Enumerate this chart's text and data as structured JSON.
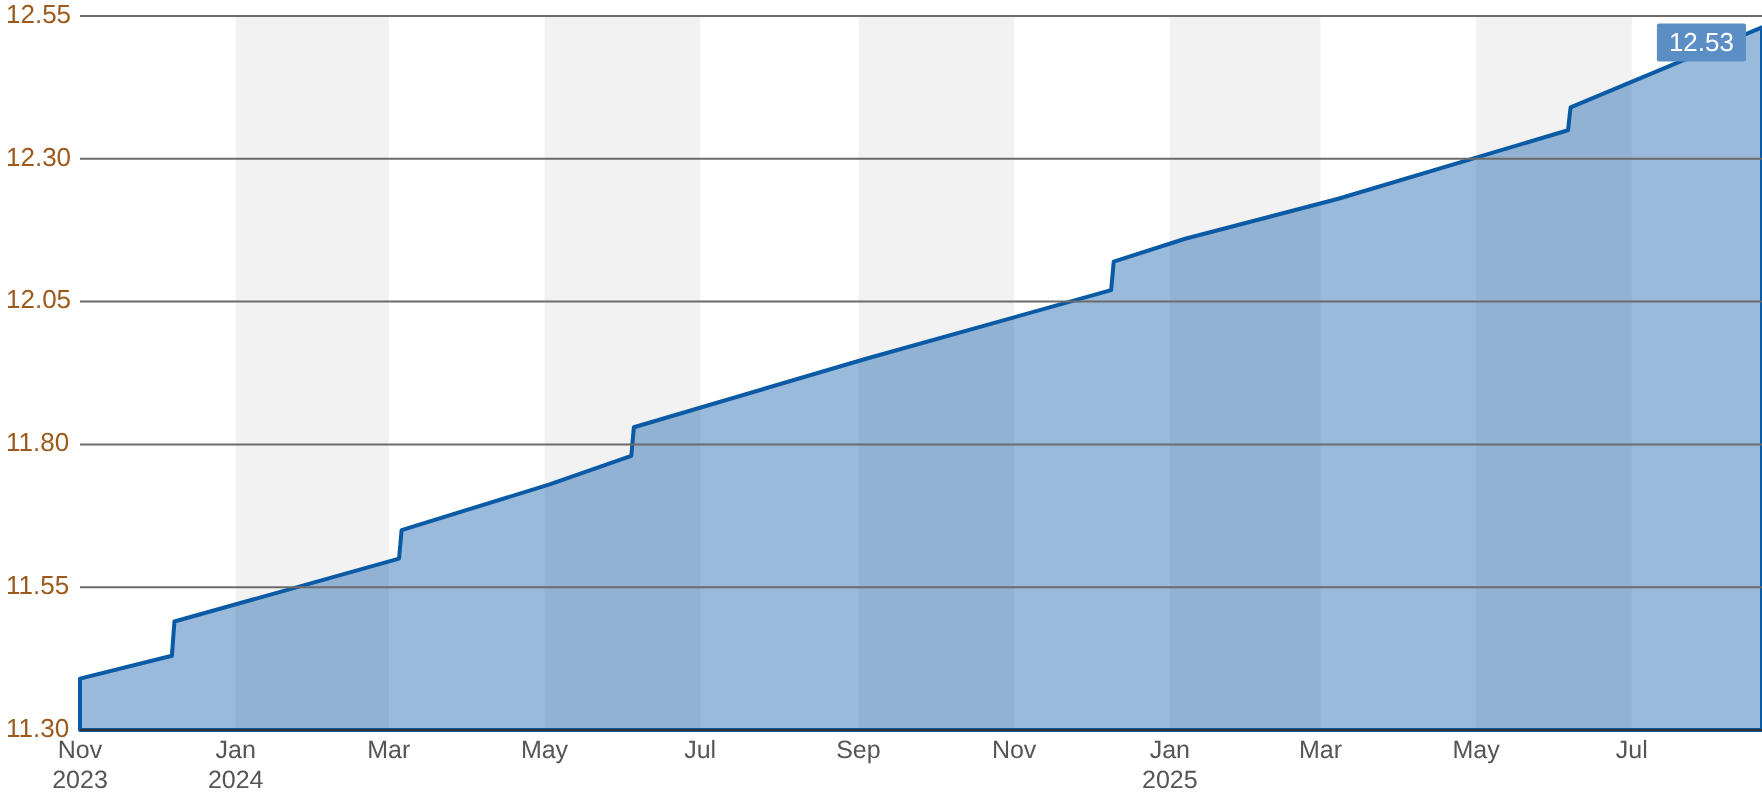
{
  "chart_data": {
    "type": "area",
    "x": [
      "2023-11-01",
      "2023-12-07",
      "2023-12-08",
      "2024-03-05",
      "2024-03-06",
      "2024-05-03",
      "2024-06-04",
      "2024-06-05",
      "2024-09-04",
      "2024-12-09",
      "2024-12-10",
      "2025-01-07",
      "2025-03-08",
      "2025-06-06",
      "2025-06-07",
      "2025-08-21"
    ],
    "series": [
      {
        "color": "#0b5aa6",
        "values": [
          11.39,
          11.43,
          11.49,
          11.6,
          11.65,
          11.73,
          11.78,
          11.83,
          11.95,
          12.07,
          12.12,
          12.16,
          12.23,
          12.35,
          12.39,
          12.53
        ],
        "value_labels": [
          null,
          null,
          null,
          null,
          null,
          null,
          null,
          null,
          null,
          null,
          null,
          null,
          null,
          null,
          null,
          "12.53"
        ]
      }
    ],
    "xlim": [
      "2023-11-01",
      "2025-08-21"
    ],
    "xticks": [
      {
        "value": "2023-11-01",
        "label": "Nov\n2023"
      },
      {
        "value": "2024-01-01",
        "label": "Jan\n2024"
      },
      {
        "value": "2024-03-01",
        "label": "Mar"
      },
      {
        "value": "2024-05-01",
        "label": "May"
      },
      {
        "value": "2024-07-01",
        "label": "Jul"
      },
      {
        "value": "2024-09-01",
        "label": "Sep"
      },
      {
        "value": "2024-11-01",
        "label": "Nov"
      },
      {
        "value": "2025-01-01",
        "label": "Jan\n2025"
      },
      {
        "value": "2025-03-01",
        "label": "Mar"
      },
      {
        "value": "2025-05-01",
        "label": "May"
      },
      {
        "value": "2025-07-01",
        "label": "Jul"
      }
    ],
    "ylim": [
      11.3,
      12.55
    ],
    "yticks": [
      {
        "value": 11.3,
        "label": "11.30"
      },
      {
        "value": 11.55,
        "label": "11.55"
      },
      {
        "value": 11.8,
        "label": "11.80"
      },
      {
        "value": 12.05,
        "label": "12.05"
      },
      {
        "value": 12.3,
        "label": "12.30"
      },
      {
        "value": 12.55,
        "label": "12.55"
      }
    ],
    "grid": "y",
    "bands": [
      {
        "axis": "x",
        "from": "2024-01-01",
        "to": "2024-03-01",
        "color": "#f2f2f2"
      },
      {
        "axis": "x",
        "from": "2024-05-01",
        "to": "2024-07-01",
        "color": "#f2f2f2"
      },
      {
        "axis": "x",
        "from": "2024-09-01",
        "to": "2024-11-01",
        "color": "#f2f2f2"
      },
      {
        "axis": "x",
        "from": "2025-01-01",
        "to": "2025-03-01",
        "color": "#f2f2f2"
      },
      {
        "axis": "x",
        "from": "2025-05-01",
        "to": "2025-07-01",
        "color": "#f2f2f2"
      }
    ]
  }
}
